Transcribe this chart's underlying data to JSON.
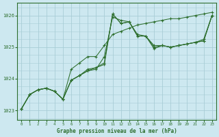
{
  "title": "Graphe pression niveau de la mer (hPa)",
  "background_color": "#cde8f0",
  "grid_color": "#a8cdd6",
  "line_color": "#2d6e2d",
  "marker_color": "#2d6e2d",
  "xlim": [
    -0.5,
    23.5
  ],
  "ylim": [
    1022.7,
    1026.4
  ],
  "yticks": [
    1023,
    1024,
    1025,
    1026
  ],
  "xticks": [
    0,
    1,
    2,
    3,
    4,
    5,
    6,
    7,
    8,
    9,
    10,
    11,
    12,
    13,
    14,
    15,
    16,
    17,
    18,
    19,
    20,
    21,
    22,
    23
  ],
  "series": [
    [
      1023.05,
      1023.5,
      1023.65,
      1023.7,
      1023.6,
      1023.35,
      1023.95,
      1024.1,
      1024.25,
      1024.3,
      1024.7,
      1025.95,
      1025.85,
      1025.8,
      1025.4,
      1025.35,
      1025.0,
      1025.05,
      1025.0,
      1025.05,
      1025.1,
      1025.15,
      1025.2,
      1026.0
    ],
    [
      1023.05,
      1023.5,
      1023.65,
      1023.7,
      1023.6,
      1023.35,
      1023.95,
      1024.1,
      1024.25,
      1024.35,
      1024.5,
      1026.05,
      1025.75,
      1025.8,
      1025.35,
      1025.35,
      1024.95,
      1025.05,
      1025.0,
      1025.05,
      1025.1,
      1025.15,
      1025.2,
      1026.0
    ],
    [
      1023.05,
      1023.5,
      1023.65,
      1023.7,
      1023.6,
      1023.35,
      1023.95,
      1024.1,
      1024.3,
      1024.35,
      1024.45,
      1026.05,
      1025.75,
      1025.8,
      1025.35,
      1025.35,
      1025.05,
      1025.05,
      1025.0,
      1025.05,
      1025.1,
      1025.15,
      1025.25,
      1026.0
    ],
    [
      1023.05,
      1023.5,
      1023.65,
      1023.7,
      1023.6,
      1023.35,
      1024.3,
      1024.5,
      1024.7,
      1024.7,
      1025.05,
      1025.4,
      1025.5,
      1025.6,
      1025.7,
      1025.75,
      1025.8,
      1025.85,
      1025.9,
      1025.9,
      1025.95,
      1026.0,
      1026.05,
      1026.1
    ]
  ]
}
